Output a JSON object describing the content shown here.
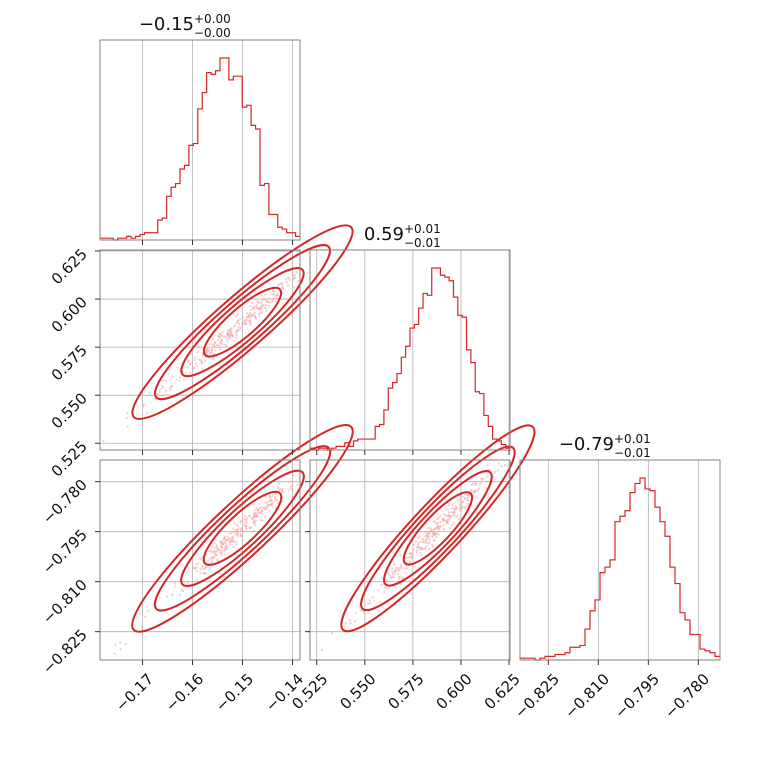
{
  "chart_data": {
    "type": "corner",
    "color": "#d62728",
    "parameters": [
      {
        "title": {
          "median": "−0.15",
          "plus": "+0.00",
          "minus": "−0.00"
        },
        "range": [
          -0.1785,
          -0.1385
        ],
        "ticks": [
          {
            "value": -0.17,
            "label": "−0.17"
          },
          {
            "value": -0.16,
            "label": "−0.16"
          },
          {
            "value": -0.15,
            "label": "−0.15"
          },
          {
            "value": -0.14,
            "label": "−0.14"
          }
        ],
        "histogram": [
          0.01,
          0.01,
          0.01,
          0.0,
          0.01,
          0.01,
          0.02,
          0.01,
          0.02,
          0.03,
          0.04,
          0.04,
          0.04,
          0.11,
          0.12,
          0.24,
          0.29,
          0.31,
          0.39,
          0.41,
          0.52,
          0.53,
          0.72,
          0.81,
          0.92,
          0.91,
          0.93,
          1.0,
          1.0,
          0.88,
          0.9,
          0.9,
          0.73,
          0.74,
          0.63,
          0.61,
          0.3,
          0.31,
          0.14,
          0.14,
          0.07,
          0.06,
          0.04,
          0.04,
          0.02
        ]
      },
      {
        "title": {
          "median": "0.59",
          "plus": "+0.01",
          "minus": "−0.01"
        },
        "range": [
          0.5215,
          0.6255
        ],
        "ticks": [
          {
            "value": 0.525,
            "label": "0.525"
          },
          {
            "value": 0.55,
            "label": "0.550"
          },
          {
            "value": 0.575,
            "label": "0.575"
          },
          {
            "value": 0.6,
            "label": "0.600"
          },
          {
            "value": 0.625,
            "label": "0.625"
          }
        ],
        "histogram": [
          0.01,
          0.0,
          0.01,
          0.01,
          0.0,
          0.01,
          0.02,
          0.02,
          0.04,
          0.02,
          0.05,
          0.06,
          0.06,
          0.06,
          0.06,
          0.13,
          0.14,
          0.22,
          0.34,
          0.37,
          0.42,
          0.51,
          0.57,
          0.67,
          0.69,
          0.78,
          0.86,
          0.85,
          1.0,
          1.0,
          0.96,
          0.95,
          0.93,
          0.84,
          0.74,
          0.73,
          0.55,
          0.48,
          0.32,
          0.31,
          0.19,
          0.13,
          0.06,
          0.05,
          0.03,
          0.01
        ]
      },
      {
        "title": {
          "median": "−0.79",
          "plus": "+0.01",
          "minus": "−0.01"
        },
        "range": [
          -0.8335,
          -0.7735
        ],
        "ticks": [
          {
            "value": -0.825,
            "label": "−0.825"
          },
          {
            "value": -0.81,
            "label": "−0.810"
          },
          {
            "value": -0.795,
            "label": "−0.795"
          },
          {
            "value": -0.78,
            "label": "−0.780"
          }
        ],
        "histogram": [
          0.01,
          0.01,
          0.01,
          0.0,
          0.01,
          0.02,
          0.02,
          0.03,
          0.03,
          0.04,
          0.07,
          0.07,
          0.08,
          0.17,
          0.27,
          0.33,
          0.48,
          0.51,
          0.55,
          0.76,
          0.79,
          0.82,
          0.92,
          0.97,
          1.0,
          0.94,
          0.93,
          0.84,
          0.76,
          0.68,
          0.51,
          0.42,
          0.26,
          0.22,
          0.14,
          0.14,
          0.06,
          0.05,
          0.04,
          0.02
        ]
      }
    ],
    "grid": true,
    "legend": "none"
  }
}
